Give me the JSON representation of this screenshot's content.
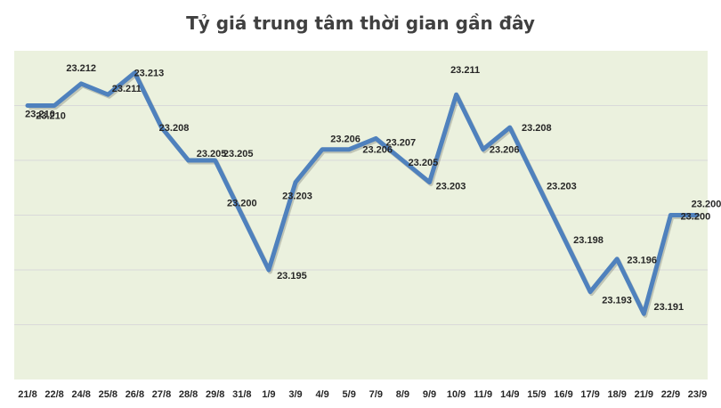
{
  "chart_data": {
    "type": "line",
    "title": "Tỷ giá trung tâm thời gian gần đây",
    "xlabel": "",
    "ylabel": "",
    "ylim": [
      23185,
      23215
    ],
    "grid": true,
    "categories": [
      "21/8",
      "22/8",
      "24/8",
      "25/8",
      "26/8",
      "27/8",
      "28/8",
      "29/8",
      "31/8",
      "1/9",
      "3/9",
      "4/9",
      "5/9",
      "7/9",
      "8/9",
      "9/9",
      "10/9",
      "11/9",
      "14/9",
      "15/9",
      "16/9",
      "17/9",
      "18/9",
      "21/9",
      "22/9",
      "23/9"
    ],
    "values": [
      23210,
      23210,
      23212,
      23211,
      23213,
      23208,
      23205,
      23205,
      23200,
      23195,
      23203,
      23206,
      23206,
      23207,
      23205,
      23203,
      23211,
      23206,
      23208,
      23203,
      23198,
      23193,
      23196,
      23191,
      23200,
      23200
    ],
    "data_labels": [
      "23.210",
      "23.210",
      "23.212",
      "23.211",
      "23.213",
      "23.208",
      "23.205",
      "23.205",
      "23.200",
      "23.195",
      "23.203",
      "23.206",
      "23.206",
      "23.207",
      "23.205",
      "23.203",
      "23.211",
      "23.206",
      "23.208",
      "23.203",
      "23.198",
      "23.193",
      "23.196",
      "23.191",
      "23.200",
      "23.200"
    ],
    "colors": {
      "line": "#4f81bd",
      "plot_bg": "#ebf1de",
      "grid": "#d9d9d9"
    }
  }
}
